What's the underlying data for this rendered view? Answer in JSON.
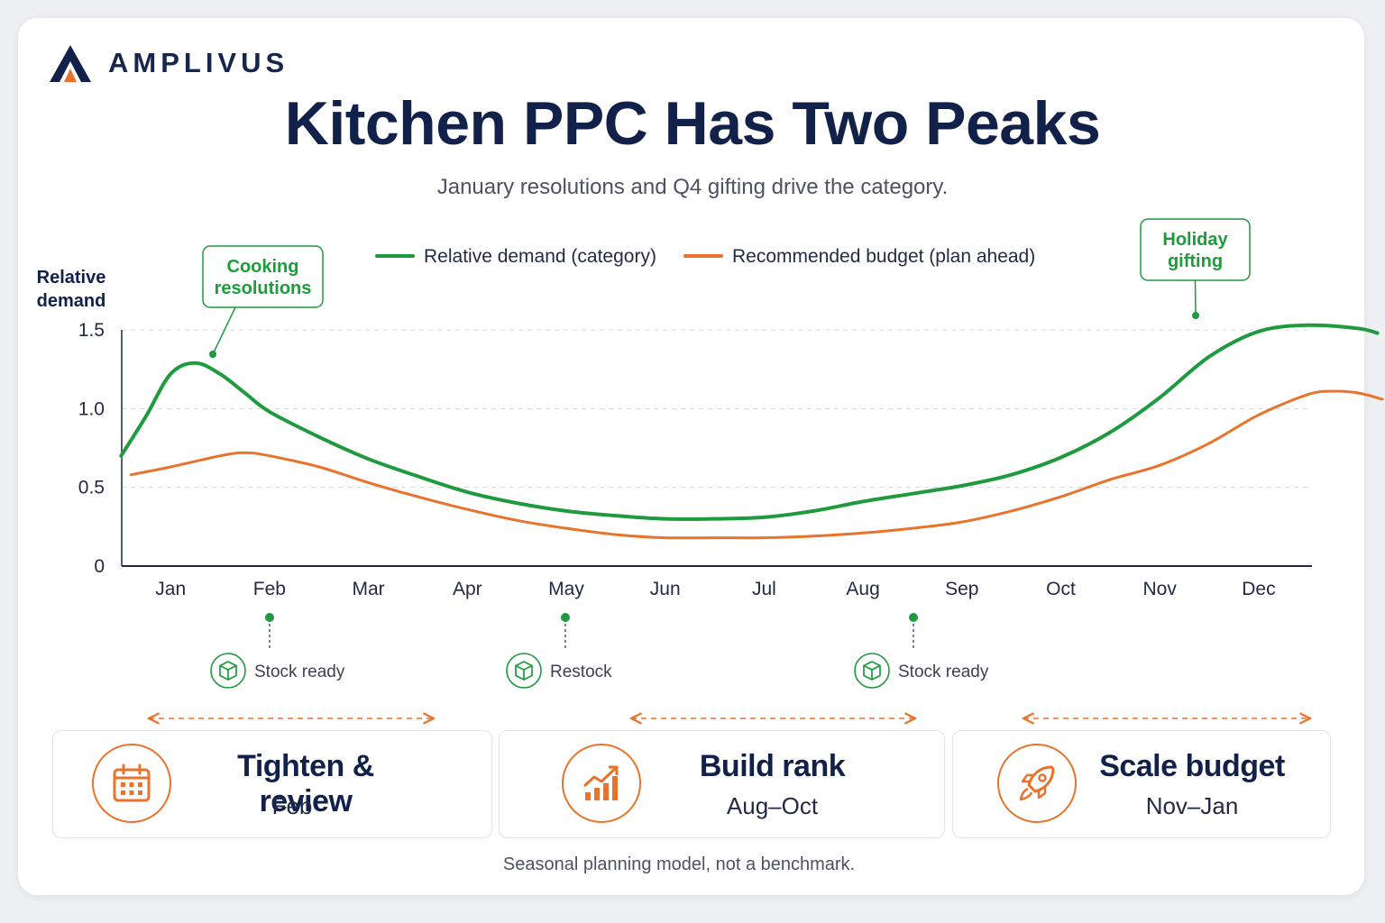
{
  "brand": {
    "name": "AMPLIVUS",
    "primary": "#12214a",
    "accent": "#e9732a"
  },
  "title": "Kitchen PPC Has Two Peaks",
  "subtitle": "January resolutions and Q4 gifting drive the category.",
  "chart_data": {
    "type": "line",
    "title": "Kitchen PPC Has Two Peaks",
    "ylabel": "Relative demand",
    "ylim": [
      0,
      1.5
    ],
    "yticks": [
      {
        "value": 0,
        "label": "0"
      },
      {
        "value": 0.5,
        "label": "0.5"
      },
      {
        "value": 1.0,
        "label": "1.0"
      },
      {
        "value": 1.5,
        "label": "1.5"
      }
    ],
    "grid": true,
    "legend_position": "top",
    "categories": [
      "Jan",
      "Feb",
      "Mar",
      "Apr",
      "May",
      "Jun",
      "Jul",
      "Aug",
      "Sep",
      "Oct",
      "Nov",
      "Dec"
    ],
    "series": [
      {
        "name": "Relative demand (category)",
        "color": "#1f9a3e",
        "points": [
          [
            0.5,
            0.7
          ],
          [
            0.75,
            0.95
          ],
          [
            1.0,
            1.22
          ],
          [
            1.25,
            1.29
          ],
          [
            1.5,
            1.22
          ],
          [
            1.75,
            1.1
          ],
          [
            2.0,
            0.98
          ],
          [
            2.5,
            0.82
          ],
          [
            3.0,
            0.68
          ],
          [
            3.5,
            0.57
          ],
          [
            4.0,
            0.47
          ],
          [
            4.5,
            0.4
          ],
          [
            5.0,
            0.35
          ],
          [
            5.5,
            0.32
          ],
          [
            6.0,
            0.3
          ],
          [
            6.5,
            0.3
          ],
          [
            7.0,
            0.31
          ],
          [
            7.5,
            0.35
          ],
          [
            8.0,
            0.41
          ],
          [
            8.5,
            0.46
          ],
          [
            9.0,
            0.51
          ],
          [
            9.5,
            0.58
          ],
          [
            10.0,
            0.69
          ],
          [
            10.5,
            0.85
          ],
          [
            11.0,
            1.07
          ],
          [
            11.5,
            1.33
          ],
          [
            12.0,
            1.49
          ],
          [
            12.5,
            1.53
          ],
          [
            13.0,
            1.51
          ],
          [
            13.2,
            1.48
          ]
        ]
      },
      {
        "name": "Recommended budget (plan ahead)",
        "color": "#e9732a",
        "points": [
          [
            0.6,
            0.58
          ],
          [
            1.0,
            0.63
          ],
          [
            1.5,
            0.7
          ],
          [
            1.75,
            0.72
          ],
          [
            2.0,
            0.7
          ],
          [
            2.5,
            0.63
          ],
          [
            3.0,
            0.53
          ],
          [
            3.5,
            0.44
          ],
          [
            4.0,
            0.36
          ],
          [
            4.5,
            0.29
          ],
          [
            5.0,
            0.24
          ],
          [
            5.5,
            0.2
          ],
          [
            6.0,
            0.18
          ],
          [
            6.5,
            0.18
          ],
          [
            7.0,
            0.18
          ],
          [
            7.5,
            0.19
          ],
          [
            8.0,
            0.21
          ],
          [
            8.5,
            0.24
          ],
          [
            9.0,
            0.28
          ],
          [
            9.5,
            0.35
          ],
          [
            10.0,
            0.44
          ],
          [
            10.5,
            0.55
          ],
          [
            11.0,
            0.64
          ],
          [
            11.5,
            0.78
          ],
          [
            12.0,
            0.96
          ],
          [
            12.5,
            1.09
          ],
          [
            12.75,
            1.11
          ],
          [
            13.0,
            1.1
          ],
          [
            13.25,
            1.06
          ]
        ]
      }
    ],
    "callouts": [
      {
        "label_lines": [
          "Cooking",
          "resolutions"
        ],
        "x": 1.25,
        "y": 1.29,
        "color": "#1f9a3e"
      },
      {
        "label_lines": [
          "Holiday",
          "gifting"
        ],
        "x": 12.5,
        "y": 1.53,
        "color": "#1f9a3e"
      }
    ]
  },
  "milestones": [
    {
      "label": "Stock ready",
      "month": "Feb",
      "icon": "box-icon"
    },
    {
      "label": "Restock",
      "month": "May",
      "icon": "box-icon"
    },
    {
      "label": "Stock ready",
      "month": "Aug",
      "icon": "box-icon"
    }
  ],
  "phases": [
    {
      "title": "Tighten & review",
      "range": "Feb",
      "icon": "calendar-icon"
    },
    {
      "title": "Build rank",
      "range": "Aug–Oct",
      "icon": "growth-chart-icon"
    },
    {
      "title": "Scale budget",
      "range": "Nov–Jan",
      "icon": "rocket-icon"
    }
  ],
  "footnote": "Seasonal planning model, not a benchmark."
}
